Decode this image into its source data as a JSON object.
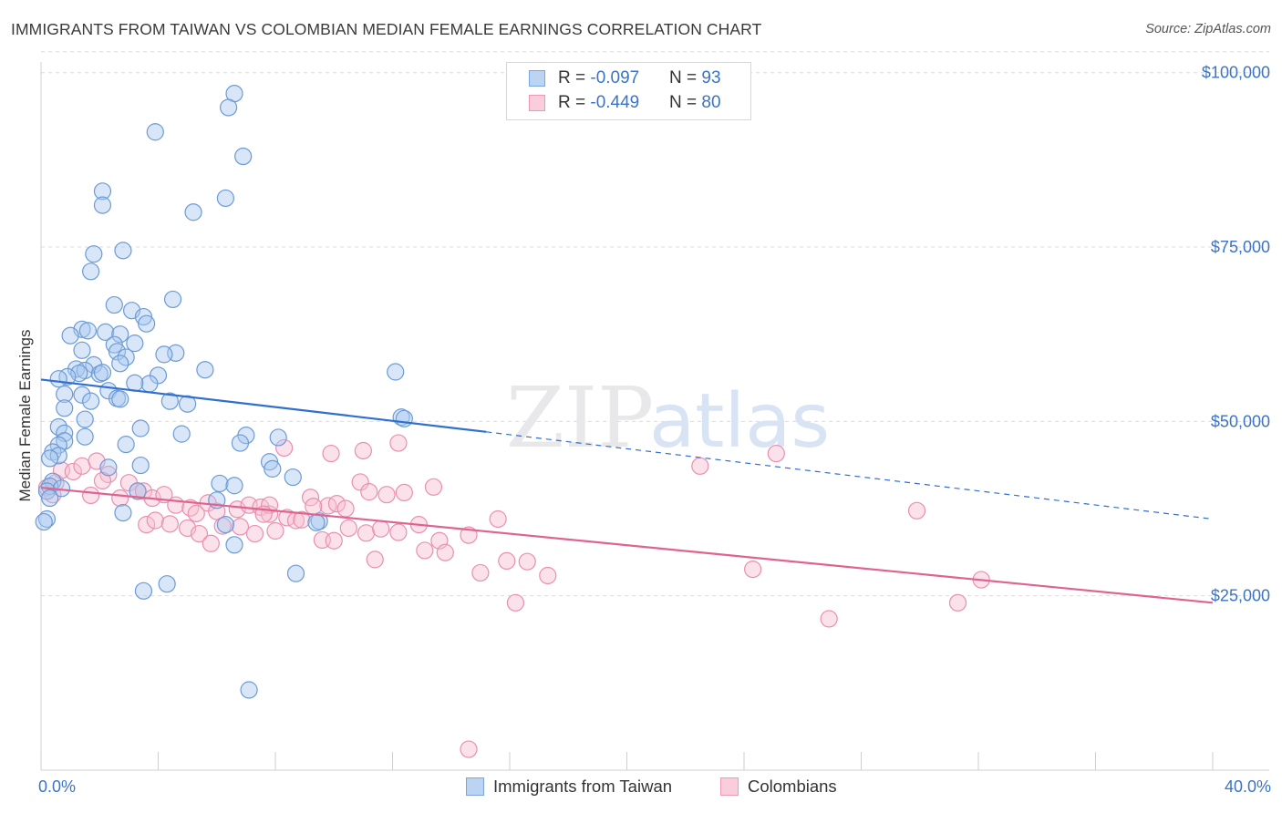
{
  "title": "IMMIGRANTS FROM TAIWAN VS COLOMBIAN MEDIAN FEMALE EARNINGS CORRELATION CHART",
  "source": "Source: ZipAtlas.com",
  "watermark": {
    "zip": "ZIP",
    "atlas": "atlas"
  },
  "legend": {
    "rows": [
      {
        "r_label": "R = ",
        "r_value": "-0.097",
        "n_label": "N = ",
        "n_value": "93"
      },
      {
        "r_label": "R = ",
        "r_value": "-0.449",
        "n_label": "N = ",
        "n_value": "80"
      }
    ]
  },
  "bottom_legend": [
    "Immigrants from Taiwan",
    "Colombians"
  ],
  "chart_data": {
    "type": "scatter",
    "xlabel": "",
    "ylabel": "Median Female Earnings",
    "xlim": [
      0,
      40
    ],
    "ylim": [
      0,
      105000
    ],
    "x_tick_labels": [
      "0.0%",
      "40.0%"
    ],
    "y_ticks": [
      25000,
      50000,
      75000,
      100000
    ],
    "y_tick_labels": [
      "$25,000",
      "$50,000",
      "$75,000",
      "$100,000"
    ],
    "grid": true,
    "colors": {
      "taiwan_fill": "#a9c8f0",
      "taiwan_stroke": "#6b9bd6",
      "taiwan_line": "#2f6fcf",
      "colombia_fill": "#f6bfd1",
      "colombia_stroke": "#e98fb0",
      "colombia_line": "#e0628f",
      "axis_text": "#3b73c8"
    },
    "series": [
      {
        "name": "Immigrants from Taiwan",
        "trend": {
          "x0": 0,
          "y0": 56000,
          "x_solid_end": 15.2,
          "y_solid_end": 48500,
          "x1": 40,
          "y1": 36000
        },
        "points": [
          [
            6.6,
            97000
          ],
          [
            6.4,
            95000
          ],
          [
            3.9,
            91500
          ],
          [
            6.9,
            88000
          ],
          [
            2.1,
            83000
          ],
          [
            6.3,
            82000
          ],
          [
            2.1,
            81000
          ],
          [
            5.2,
            80000
          ],
          [
            1.8,
            74000
          ],
          [
            2.8,
            74500
          ],
          [
            1.7,
            71500
          ],
          [
            4.5,
            67500
          ],
          [
            2.5,
            66700
          ],
          [
            3.1,
            65900
          ],
          [
            3.5,
            65000
          ],
          [
            1.4,
            63200
          ],
          [
            1.0,
            62300
          ],
          [
            1.6,
            63000
          ],
          [
            2.2,
            62800
          ],
          [
            3.6,
            64000
          ],
          [
            2.7,
            62500
          ],
          [
            3.2,
            61200
          ],
          [
            2.5,
            61000
          ],
          [
            1.4,
            60200
          ],
          [
            2.6,
            60000
          ],
          [
            4.6,
            59800
          ],
          [
            4.2,
            59600
          ],
          [
            2.9,
            59200
          ],
          [
            2.7,
            58300
          ],
          [
            1.8,
            58100
          ],
          [
            1.2,
            57500
          ],
          [
            1.5,
            57300
          ],
          [
            5.6,
            57400
          ],
          [
            1.3,
            56900
          ],
          [
            2.0,
            56800
          ],
          [
            2.1,
            57000
          ],
          [
            0.9,
            56400
          ],
          [
            0.6,
            56100
          ],
          [
            12.1,
            57100
          ],
          [
            4.0,
            56600
          ],
          [
            3.7,
            55400
          ],
          [
            3.2,
            55500
          ],
          [
            2.3,
            54400
          ],
          [
            2.6,
            53300
          ],
          [
            1.4,
            53800
          ],
          [
            2.7,
            53200
          ],
          [
            0.8,
            53900
          ],
          [
            1.7,
            52900
          ],
          [
            4.4,
            52900
          ],
          [
            5.0,
            52500
          ],
          [
            0.8,
            51900
          ],
          [
            12.3,
            50600
          ],
          [
            12.4,
            50400
          ],
          [
            1.5,
            50300
          ],
          [
            0.6,
            49200
          ],
          [
            3.4,
            49000
          ],
          [
            0.8,
            48300
          ],
          [
            4.8,
            48200
          ],
          [
            7.0,
            48000
          ],
          [
            8.1,
            47700
          ],
          [
            1.5,
            47800
          ],
          [
            0.8,
            47200
          ],
          [
            6.8,
            46900
          ],
          [
            0.6,
            46600
          ],
          [
            2.9,
            46700
          ],
          [
            0.4,
            45600
          ],
          [
            0.6,
            45100
          ],
          [
            0.3,
            44700
          ],
          [
            7.8,
            44200
          ],
          [
            3.4,
            43700
          ],
          [
            2.3,
            43400
          ],
          [
            0.4,
            41400
          ],
          [
            0.3,
            40700
          ],
          [
            6.1,
            41100
          ],
          [
            6.6,
            40800
          ],
          [
            8.6,
            42000
          ],
          [
            7.9,
            43200
          ],
          [
            3.3,
            40000
          ],
          [
            0.7,
            40400
          ],
          [
            0.2,
            40000
          ],
          [
            0.3,
            39000
          ],
          [
            6.0,
            38700
          ],
          [
            2.8,
            36900
          ],
          [
            9.5,
            35700
          ],
          [
            9.4,
            35500
          ],
          [
            6.3,
            35200
          ],
          [
            0.2,
            36000
          ],
          [
            0.1,
            35600
          ],
          [
            6.6,
            32300
          ],
          [
            8.7,
            28200
          ],
          [
            4.3,
            26700
          ],
          [
            3.5,
            25700
          ],
          [
            7.1,
            11500
          ]
        ]
      },
      {
        "name": "Colombians",
        "trend": {
          "x0": 0,
          "y0": 40500,
          "x1": 40,
          "y1": 24000
        },
        "points": [
          [
            0.2,
            40500
          ],
          [
            0.4,
            39500
          ],
          [
            0.5,
            41200
          ],
          [
            0.7,
            43000
          ],
          [
            1.1,
            42800
          ],
          [
            1.4,
            43600
          ],
          [
            1.9,
            44300
          ],
          [
            2.3,
            42400
          ],
          [
            2.1,
            41500
          ],
          [
            3.0,
            41200
          ],
          [
            1.7,
            39400
          ],
          [
            2.7,
            39000
          ],
          [
            3.3,
            40000
          ],
          [
            3.5,
            40000
          ],
          [
            3.8,
            39000
          ],
          [
            4.2,
            39500
          ],
          [
            4.6,
            38000
          ],
          [
            5.1,
            37600
          ],
          [
            5.3,
            36800
          ],
          [
            5.7,
            38300
          ],
          [
            6.0,
            37100
          ],
          [
            6.7,
            37400
          ],
          [
            7.1,
            38000
          ],
          [
            7.5,
            37700
          ],
          [
            7.8,
            36700
          ],
          [
            8.4,
            36200
          ],
          [
            8.7,
            35800
          ],
          [
            9.2,
            39100
          ],
          [
            9.8,
            37900
          ],
          [
            10.1,
            38200
          ],
          [
            10.4,
            37500
          ],
          [
            10.9,
            41300
          ],
          [
            11.2,
            39900
          ],
          [
            11.8,
            39500
          ],
          [
            12.4,
            39800
          ],
          [
            13.4,
            40600
          ],
          [
            3.6,
            35200
          ],
          [
            3.9,
            35800
          ],
          [
            4.4,
            35300
          ],
          [
            5.0,
            34700
          ],
          [
            5.4,
            33900
          ],
          [
            6.2,
            35000
          ],
          [
            6.8,
            34900
          ],
          [
            7.3,
            33900
          ],
          [
            8.0,
            34300
          ],
          [
            8.9,
            35900
          ],
          [
            9.6,
            33000
          ],
          [
            10.5,
            34700
          ],
          [
            11.1,
            34000
          ],
          [
            11.6,
            34600
          ],
          [
            12.2,
            34100
          ],
          [
            12.9,
            35200
          ],
          [
            13.6,
            32900
          ],
          [
            14.6,
            33700
          ],
          [
            15.6,
            36000
          ],
          [
            5.8,
            32500
          ],
          [
            10.0,
            32900
          ],
          [
            11.4,
            30200
          ],
          [
            13.1,
            31500
          ],
          [
            13.8,
            31200
          ],
          [
            15.0,
            28300
          ],
          [
            15.9,
            30000
          ],
          [
            16.6,
            29900
          ],
          [
            17.3,
            27900
          ],
          [
            8.3,
            46200
          ],
          [
            9.9,
            45400
          ],
          [
            11.0,
            45800
          ],
          [
            12.2,
            46900
          ],
          [
            7.8,
            38000
          ],
          [
            9.3,
            37800
          ],
          [
            22.5,
            43600
          ],
          [
            25.1,
            45400
          ],
          [
            29.9,
            37200
          ],
          [
            24.3,
            28800
          ],
          [
            26.9,
            21700
          ],
          [
            32.1,
            27300
          ],
          [
            31.3,
            24000
          ],
          [
            16.2,
            24000
          ],
          [
            7.6,
            36700
          ],
          [
            14.6,
            3000
          ]
        ]
      }
    ]
  }
}
